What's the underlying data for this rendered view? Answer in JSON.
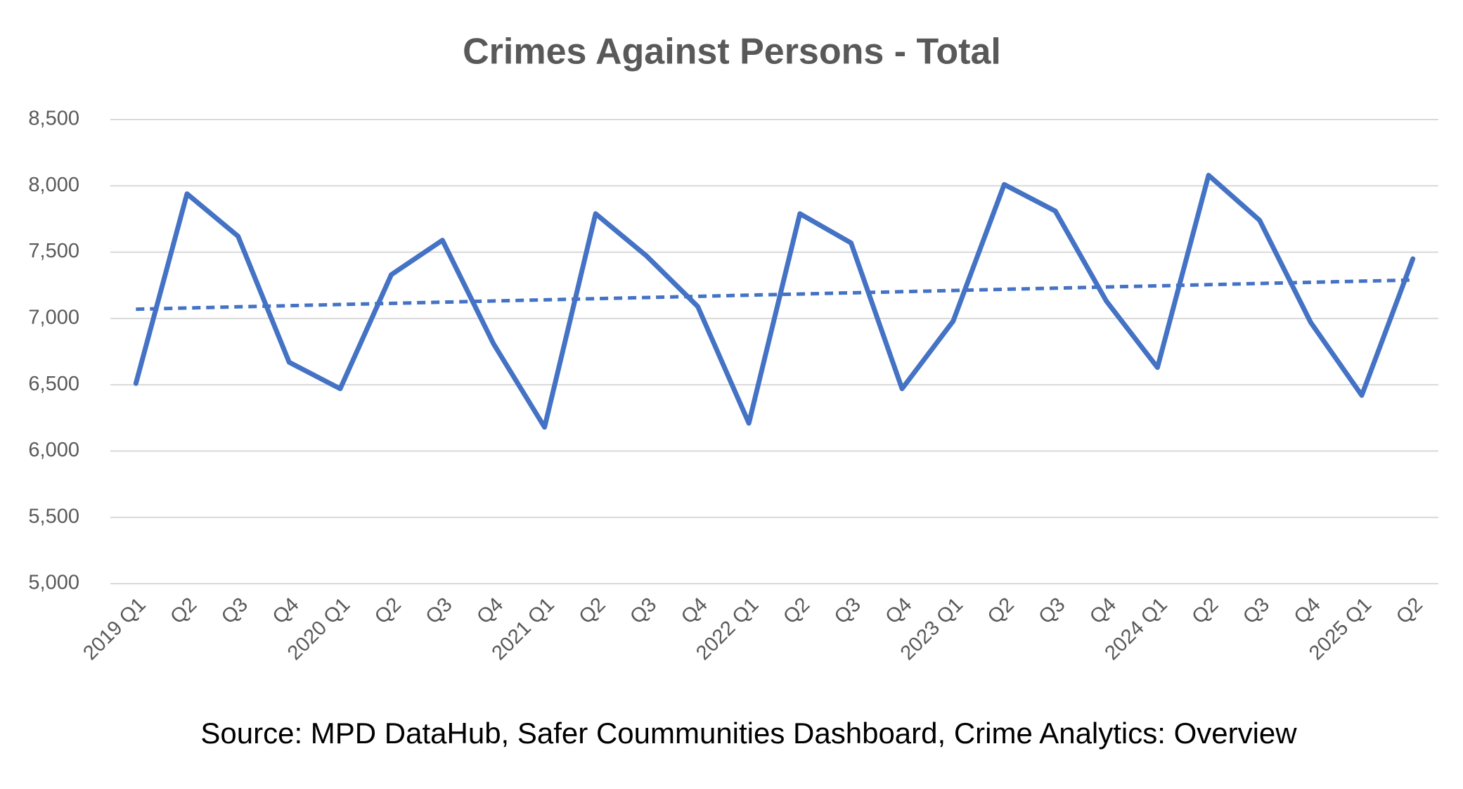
{
  "chart_data": {
    "type": "line",
    "title": "Crimes Against Persons - Total",
    "source": "Source: MPD DataHub, Safer Coummunities Dashboard,  Crime Analytics: Overview",
    "categories": [
      "2019 Q1",
      "Q2",
      "Q3",
      "Q4",
      "2020 Q1",
      "Q2",
      "Q3",
      "Q4",
      "2021 Q1",
      "Q2",
      "Q3",
      "Q4",
      "2022 Q1",
      "Q2",
      "Q3",
      "Q4",
      "2023 Q1",
      "Q2",
      "Q3",
      "Q4",
      "2024 Q1",
      "Q2",
      "Q3",
      "Q4",
      "2025 Q1",
      "Q2"
    ],
    "series": [
      {
        "color": "#4472c4",
        "values": [
          6510,
          7940,
          7620,
          6670,
          6470,
          7330,
          7590,
          6810,
          6180,
          7790,
          7470,
          7090,
          6210,
          7790,
          7570,
          6470,
          6980,
          8010,
          7810,
          7130,
          6630,
          8080,
          7740,
          6970,
          6420,
          7450
        ]
      },
      {
        "color": "#4472c4",
        "dashed": true,
        "values": [
          7070,
          7078.8,
          7087.6,
          7096.4,
          7105.2,
          7114,
          7122.8,
          7131.6,
          7140.4,
          7149.2,
          7158,
          7166.8,
          7175.6,
          7184.4,
          7193.2,
          7202,
          7210.8,
          7219.6,
          7228.4,
          7237.2,
          7246,
          7254.8,
          7263.6,
          7272.4,
          7281.2,
          7290
        ]
      }
    ],
    "ylim": [
      5000,
      8500
    ],
    "yticks": [
      {
        "value": 5000,
        "label": "5,000"
      },
      {
        "value": 5500,
        "label": "5,500"
      },
      {
        "value": 6000,
        "label": "6,000"
      },
      {
        "value": 6500,
        "label": "6,500"
      },
      {
        "value": 7000,
        "label": "7,000"
      },
      {
        "value": 7500,
        "label": "7,500"
      },
      {
        "value": 8000,
        "label": "8,000"
      },
      {
        "value": 8500,
        "label": "8,500"
      }
    ],
    "grid": true
  }
}
